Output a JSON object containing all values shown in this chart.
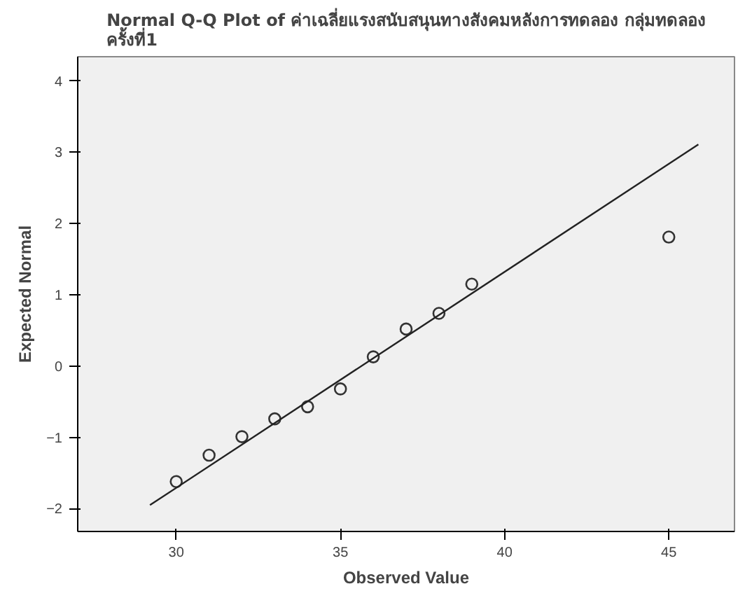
{
  "chart_data": {
    "type": "scatter",
    "title": "Normal Q-Q Plot of ค่าเฉลี่ยแรงสนับสนุนทางสังคมหลังการทดลอง กลุ่มทดลอง ครั้งที่1",
    "xlabel": "Observed Value",
    "ylabel": "Expected Normal",
    "grid": false,
    "xlim": [
      27,
      47
    ],
    "ylim": [
      -2.32,
      4.34
    ],
    "xticks": [
      30,
      35,
      40,
      45
    ],
    "yticks": [
      -2,
      -1,
      0,
      1,
      2,
      3,
      4
    ],
    "series": [
      {
        "marker": "circle",
        "color": "#333333",
        "x": [
          30,
          31,
          32,
          33,
          34,
          35,
          36,
          37,
          38,
          39,
          45
        ],
        "values": [
          -1.62,
          -1.25,
          -0.99,
          -0.74,
          -0.57,
          -0.32,
          0.13,
          0.52,
          0.74,
          1.15,
          1.81
        ]
      },
      {
        "type": "line",
        "marker": "none",
        "color": "#222222",
        "x": [
          29.2,
          45.9
        ],
        "values": [
          -1.95,
          3.11
        ]
      }
    ]
  }
}
